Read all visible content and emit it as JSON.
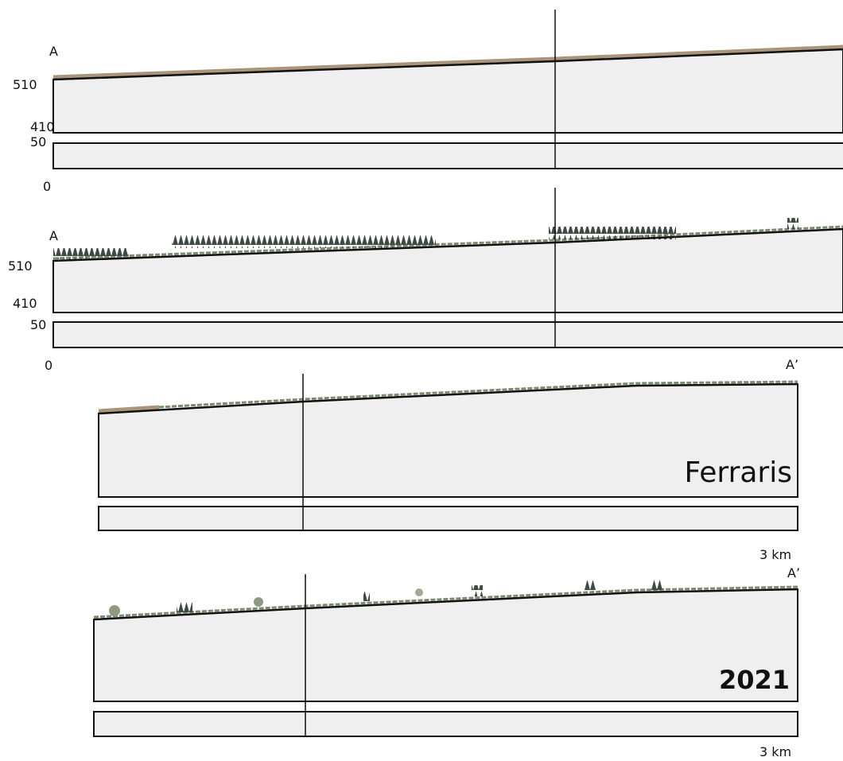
{
  "sections": [
    {
      "point_start": "A",
      "elevation_labels": [
        "510",
        "410",
        "50"
      ],
      "origin": "0"
    },
    {
      "point_start": "A",
      "elevation_labels": [
        "510",
        "410",
        "50"
      ],
      "origin": "0",
      "point_end": "A’"
    },
    {
      "title": "Ferraris",
      "scale": "3 km",
      "point_end": "A’"
    },
    {
      "title": "2021",
      "scale": "3 km"
    }
  ]
}
